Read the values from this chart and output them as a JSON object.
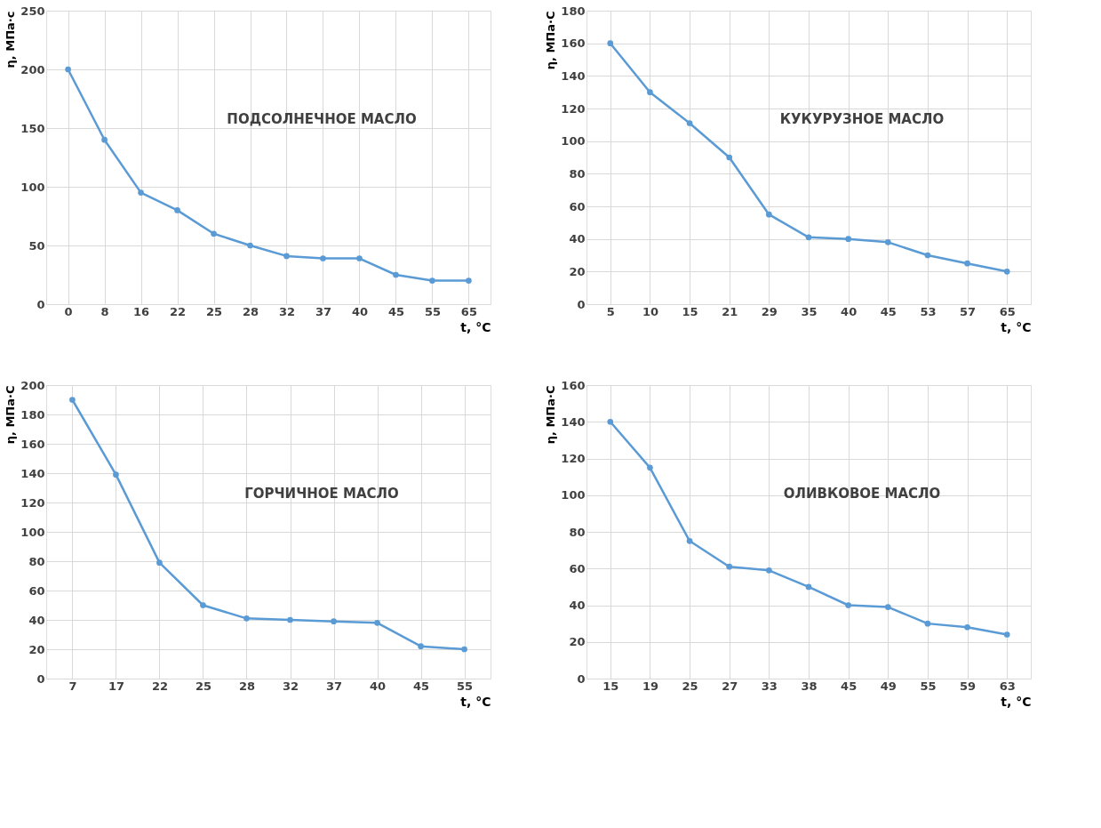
{
  "chart_data": [
    {
      "type": "line",
      "title": "ПОДСОЛНЕЧНОЕ МАСЛО",
      "xlabel": "t, °C",
      "ylabel": "η, МПа·с",
      "categories": [
        "0",
        "8",
        "16",
        "22",
        "25",
        "28",
        "32",
        "37",
        "40",
        "45",
        "55",
        "65"
      ],
      "series": [
        {
          "color": "#5b9bd5",
          "values": [
            200,
            140,
            95,
            80,
            60,
            50,
            41,
            39,
            39,
            25,
            20,
            20
          ]
        }
      ],
      "ylim": [
        0,
        250
      ],
      "yticks": [
        0,
        50,
        100,
        150,
        200,
        250
      ],
      "grid": true,
      "marker": "circle",
      "line_style": "solid"
    },
    {
      "type": "line",
      "title": "КУКУРУЗНОЕ МАСЛО",
      "xlabel": "t, °C",
      "ylabel": "η, МПа·С",
      "categories": [
        "5",
        "10",
        "15",
        "21",
        "29",
        "35",
        "40",
        "45",
        "53",
        "57",
        "65"
      ],
      "series": [
        {
          "color": "#5b9bd5",
          "values": [
            160,
            130,
            111,
            90,
            55,
            41,
            40,
            38,
            30,
            25,
            20
          ]
        }
      ],
      "ylim": [
        0,
        180
      ],
      "yticks": [
        0,
        20,
        40,
        60,
        80,
        100,
        120,
        140,
        160,
        180
      ],
      "grid": true,
      "marker": "circle",
      "line_style": "solid"
    },
    {
      "type": "line",
      "title": "ГОРЧИЧНОЕ МАСЛО",
      "xlabel": "t, °C",
      "ylabel": "η, МПа·С",
      "categories": [
        "7",
        "17",
        "22",
        "25",
        "28",
        "32",
        "37",
        "40",
        "45",
        "55"
      ],
      "series": [
        {
          "color": "#5b9bd5",
          "values": [
            190,
            139,
            79,
            50,
            41,
            40,
            39,
            38,
            22,
            20
          ]
        }
      ],
      "ylim": [
        0,
        200
      ],
      "yticks": [
        0,
        20,
        40,
        60,
        80,
        100,
        120,
        140,
        160,
        180,
        200
      ],
      "grid": true,
      "marker": "circle",
      "line_style": "solid"
    },
    {
      "type": "line",
      "title": "ОЛИВКОВОЕ МАСЛО",
      "xlabel": "t, °C",
      "ylabel": "η, МПа·С",
      "categories": [
        "15",
        "19",
        "25",
        "27",
        "33",
        "38",
        "45",
        "49",
        "55",
        "59",
        "63"
      ],
      "series": [
        {
          "color": "#5b9bd5",
          "values": [
            140,
            115,
            75,
            61,
            59,
            50,
            40,
            39,
            30,
            28,
            24
          ]
        }
      ],
      "ylim": [
        0,
        160
      ],
      "yticks": [
        0,
        20,
        40,
        60,
        80,
        100,
        120,
        140,
        160
      ],
      "grid": true,
      "marker": "circle",
      "line_style": "solid"
    }
  ]
}
